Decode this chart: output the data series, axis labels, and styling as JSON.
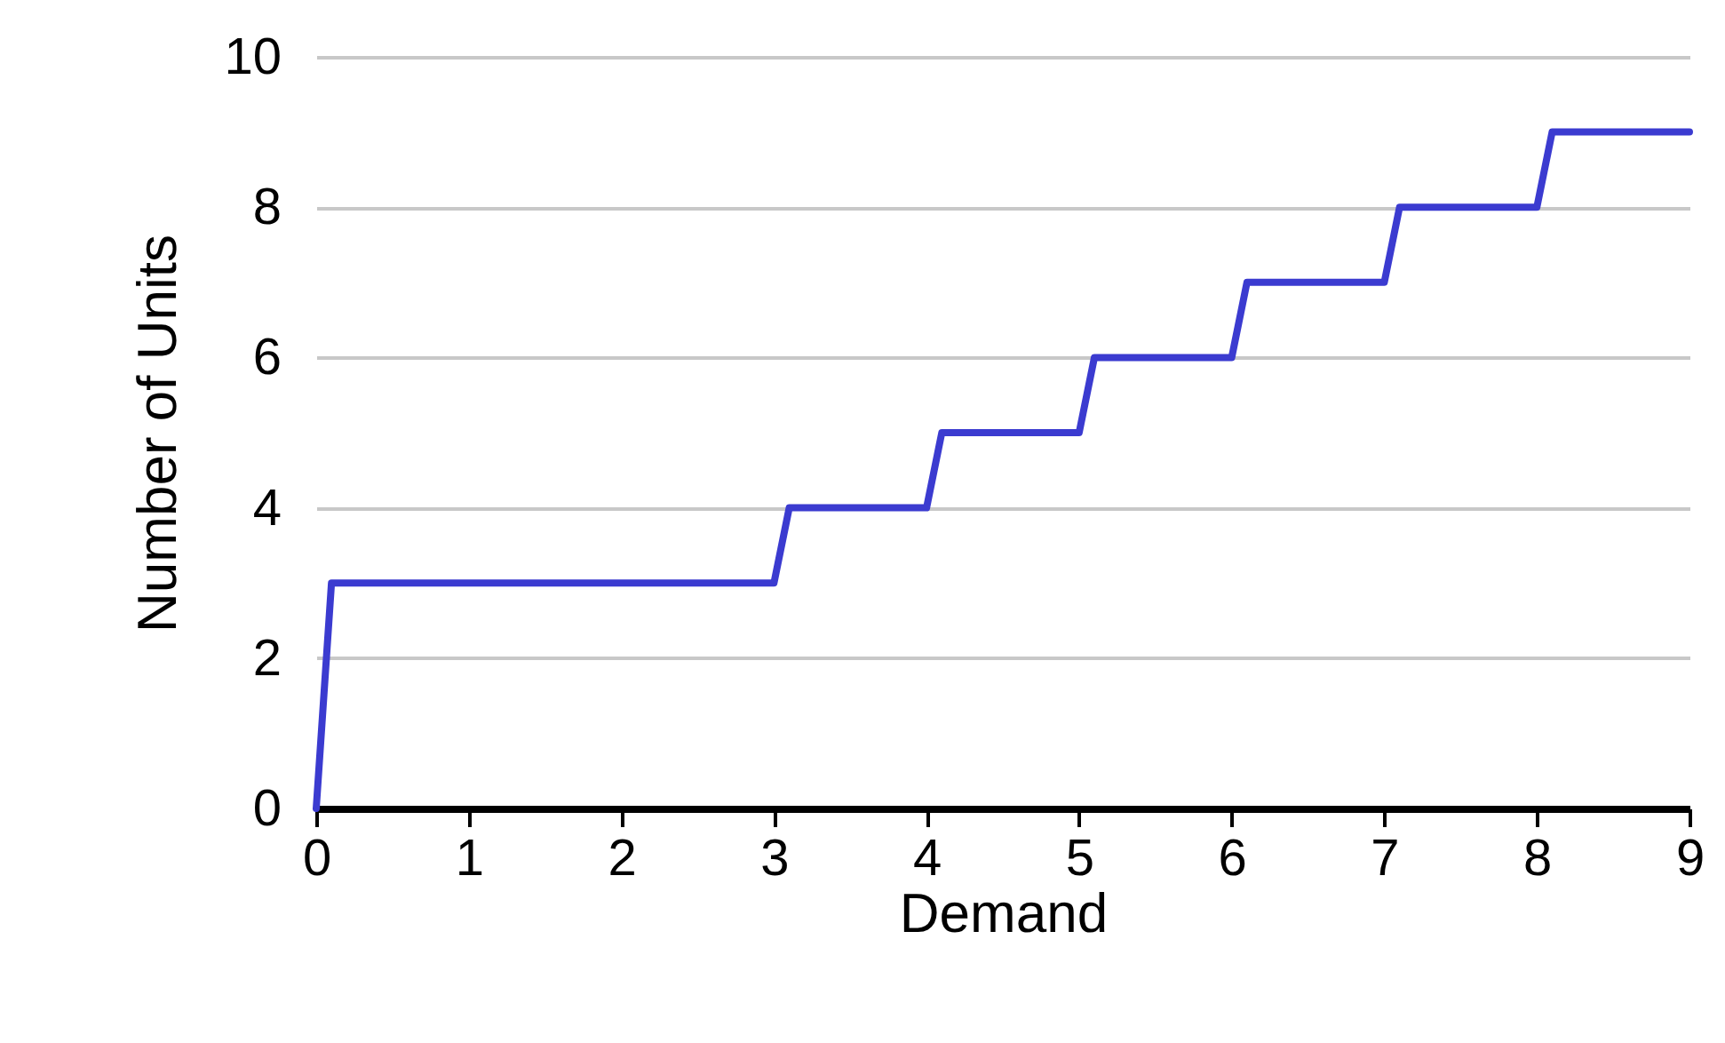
{
  "chart_data": {
    "type": "line",
    "xlabel": "Demand",
    "ylabel": "Number of Units",
    "x": [
      0,
      0.1,
      3,
      3.1,
      4,
      4.1,
      5,
      5.1,
      6,
      6.1,
      7,
      7.1,
      8,
      8.1,
      9
    ],
    "series": [
      {
        "color": "#3b3bd0",
        "values": [
          0,
          3,
          3,
          4,
          4,
          5,
          5,
          6,
          6,
          7,
          7,
          8,
          8,
          9,
          9
        ]
      }
    ],
    "xlim": [
      0,
      9
    ],
    "xticks": [
      0,
      1,
      2,
      3,
      4,
      5,
      6,
      7,
      8,
      9
    ],
    "ylim": [
      0,
      10
    ],
    "yticks": [
      0,
      2,
      4,
      6,
      8,
      10
    ],
    "grid": "y",
    "legend": false,
    "marker": "none",
    "line_style": "solid"
  }
}
